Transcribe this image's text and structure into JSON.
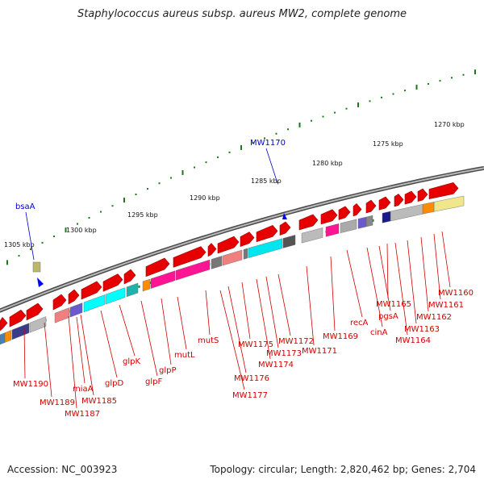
{
  "title": "Staphylococcus aureus subsp. aureus MW2, complete genome",
  "accession": "Accession: NC_003923",
  "summary": "Topology: circular; Length: 2,820,462 bp; Genes: 2,704",
  "colors": {
    "backbone": "#707070",
    "forward_gene": "#e60000",
    "tick": "#1a7a1a",
    "gene_label": "#d00000",
    "feature_label": "#0000cc"
  },
  "scale_labels": [
    "1270 kbp",
    "1275 kbp",
    "1280 kbp",
    "1285 kbp",
    "1290 kbp",
    "1295 kbp",
    "1300 kbp",
    "1305 kbp"
  ],
  "features": [
    "bsaA",
    "MW1170"
  ],
  "gene_labels": [
    "MW1160",
    "MW1161",
    "MW1162",
    "MW1163",
    "MW1164",
    "MW1165",
    "pgsA",
    "cinA",
    "recA",
    "MW1169",
    "MW1171",
    "MW1172",
    "MW1173",
    "MW1174",
    "MW1175",
    "MW1176",
    "MW1177",
    "mutS",
    "mutL",
    "glpP",
    "glpF",
    "glpK",
    "glpD",
    "MW1185",
    "MW1187",
    "miaA",
    "MW1189",
    "MW1190"
  ]
}
